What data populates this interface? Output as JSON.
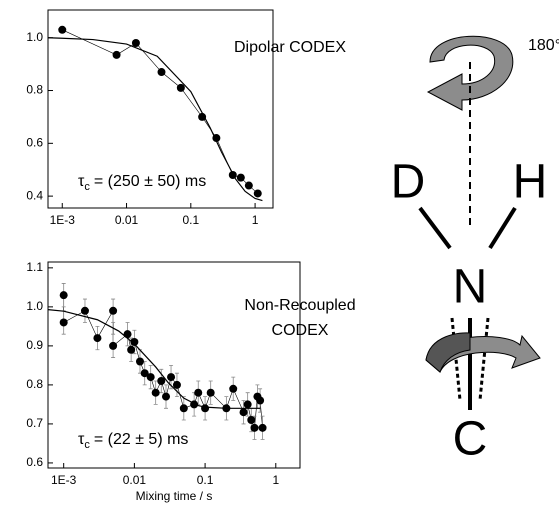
{
  "chart_data": [
    {
      "type": "scatter",
      "title": [
        "Dipolar CODEX"
      ],
      "xscale": "log",
      "xlim": [
        0.0006,
        1.9
      ],
      "ylim": [
        0.355,
        1.105
      ],
      "xticks": [
        {
          "value": 0.001,
          "label": "1E-3"
        },
        0.01,
        0.1,
        1
      ],
      "yticks": [
        0.4,
        0.6,
        0.8,
        {
          "value": 1.0,
          "label": "1.0"
        }
      ],
      "annotation": {
        "symbol": "τ",
        "subscript": "c",
        "text": "= (250 ± 50) ms"
      },
      "series": [
        {
          "color": "#000000",
          "marker": "circle",
          "line_width": 0.6,
          "x": [
            0.001,
            0.007,
            0.014,
            0.035,
            0.07,
            0.15,
            0.25,
            0.45,
            0.6,
            0.8,
            1.1
          ],
          "values": [
            1.03,
            0.935,
            0.98,
            0.87,
            0.81,
            0.7,
            0.62,
            0.48,
            0.47,
            0.44,
            0.41
          ]
        },
        {
          "color": "#000000",
          "marker": "none",
          "line_width": 1.2,
          "x": [
            0.0006,
            0.001,
            0.003,
            0.01,
            0.03,
            0.1,
            0.2,
            0.3,
            0.5,
            0.7,
            1,
            1.3
          ],
          "values": [
            1.0,
            0.998,
            0.993,
            0.976,
            0.93,
            0.796,
            0.659,
            0.567,
            0.464,
            0.418,
            0.391,
            0.383
          ]
        }
      ]
    },
    {
      "type": "scatter",
      "title": [
        "Non-Recoupled",
        "CODEX"
      ],
      "xscale": "log",
      "xlabel": "Mixing time / s",
      "xlim": [
        0.0006,
        2.2
      ],
      "ylim": [
        0.587,
        1.115
      ],
      "xticks": [
        {
          "value": 0.001,
          "label": "1E-3"
        },
        0.01,
        0.1,
        1
      ],
      "yticks": [
        0.6,
        0.7,
        0.8,
        0.9,
        {
          "value": 1.0,
          "label": "1.0"
        },
        1.1
      ],
      "annotation": {
        "symbol": "τ",
        "subscript": "c",
        "text": "= (22 ± 5) ms"
      },
      "series": [
        {
          "color": "#000000",
          "marker": "circle",
          "line_width": 0.6,
          "error_color": "#888888",
          "x": [
            0.001,
            0.001,
            0.002,
            0.003,
            0.005,
            0.005,
            0.008,
            0.009,
            0.01,
            0.012,
            0.014,
            0.017,
            0.02,
            0.024,
            0.028,
            0.033,
            0.04,
            0.05,
            0.07,
            0.08,
            0.1,
            0.12,
            0.2,
            0.25,
            0.35,
            0.4,
            0.45,
            0.5,
            0.55,
            0.6,
            0.65
          ],
          "values": [
            1.03,
            0.96,
            0.99,
            0.92,
            0.99,
            0.9,
            0.93,
            0.89,
            0.91,
            0.86,
            0.83,
            0.82,
            0.78,
            0.81,
            0.77,
            0.82,
            0.8,
            0.74,
            0.75,
            0.78,
            0.74,
            0.78,
            0.74,
            0.79,
            0.73,
            0.75,
            0.71,
            0.69,
            0.77,
            0.76,
            0.69
          ],
          "errors": [
            0.03,
            0.03,
            0.03,
            0.03,
            0.03,
            0.03,
            0.03,
            0.03,
            0.03,
            0.03,
            0.03,
            0.03,
            0.03,
            0.03,
            0.03,
            0.03,
            0.03,
            0.03,
            0.03,
            0.03,
            0.03,
            0.03,
            0.03,
            0.03,
            0.03,
            0.03,
            0.03,
            0.03,
            0.03,
            0.03,
            0.03
          ]
        },
        {
          "color": "#000000",
          "marker": "none",
          "line_width": 1.2,
          "x": [
            0.0006,
            0.001,
            0.003,
            0.006,
            0.01,
            0.02,
            0.03,
            0.05,
            0.08,
            0.1,
            0.2,
            0.6
          ],
          "values": [
            0.993,
            0.989,
            0.967,
            0.938,
            0.905,
            0.846,
            0.806,
            0.766,
            0.747,
            0.743,
            0.74,
            0.74
          ]
        }
      ]
    }
  ],
  "diagram": {
    "angle_label": "180°",
    "atoms": [
      "D",
      "H",
      "N",
      "C"
    ]
  }
}
